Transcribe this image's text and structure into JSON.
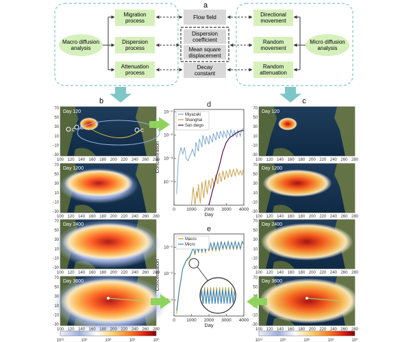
{
  "panel_labels": {
    "a": "a",
    "b": "b",
    "c": "c",
    "d": "d",
    "e": "e"
  },
  "flow": {
    "left_hub": [
      "Macro diffusion",
      "analysis"
    ],
    "right_hub": [
      "Micro diffusion",
      "analysis"
    ],
    "left_boxes": [
      [
        "Migration",
        "process"
      ],
      [
        "Dispersion",
        "process"
      ],
      [
        "Attenuation",
        "process"
      ]
    ],
    "center_boxes": {
      "flow_field": [
        "Flow field"
      ],
      "dispersion": [
        "Dispersion",
        "coefficient"
      ],
      "msd": [
        "Mean square",
        "displacement"
      ],
      "decay": [
        "Decay",
        "constant"
      ]
    },
    "right_boxes": [
      [
        "Directional",
        "movement"
      ],
      [
        "Random",
        "movement"
      ],
      [
        "Random",
        "attenuation"
      ]
    ],
    "colors": {
      "green_box": "#d6f0bb",
      "gray_box": "#d9d9d9",
      "dash": "#7fc4c4",
      "arrow_teal": "#7fc6c6",
      "arrow_green": "#8ed35c"
    }
  },
  "maps": {
    "day_labels": [
      "Day 120",
      "Day 1200",
      "Day 2400",
      "Day 3600"
    ],
    "y_ticks": [
      "70",
      "50",
      "30",
      "10",
      "-10",
      "-30"
    ],
    "x_ticks": [
      "100",
      "120",
      "140",
      "160",
      "180",
      "200",
      "220",
      "240",
      "260",
      "280"
    ],
    "site_markers": [
      "C",
      "C",
      "C"
    ]
  },
  "colorbars": {
    "ticks": [
      "10¹²",
      "10⁹",
      "10⁶",
      "10³",
      "10⁰"
    ],
    "stops": [
      "#e8ecf8",
      "#9fb0e0",
      "#ffffff",
      "#ffd070",
      "#ff8020",
      "#e02010",
      "#800000"
    ]
  },
  "chart_data": [
    {
      "type": "line",
      "title": "d",
      "xlabel": "Day",
      "ylabel": "Concentration",
      "log_y": true,
      "xlim": [
        0,
        4000
      ],
      "y_ticks": [
        "10⁻¹",
        "10⁻²",
        "10⁻³",
        "10⁻⁴"
      ],
      "x_ticks": [
        "0",
        "1000",
        "2000",
        "3000",
        "4000"
      ],
      "legend_position": "top-left",
      "series": [
        {
          "name": "Miyazaki",
          "color": "#7aa7cf",
          "x": [
            150,
            250,
            400,
            500,
            600,
            700,
            800,
            1000,
            1050,
            1200,
            1250,
            1400,
            1450,
            1600,
            1650,
            1800,
            1850,
            2000,
            2050,
            2200,
            2250,
            2400,
            2450,
            2600,
            2650,
            2800,
            2850,
            3000,
            3050,
            3200,
            3250,
            3400,
            3450,
            3600,
            3650,
            3800,
            3850,
            4000
          ],
          "y": [
            3e-05,
            0.001,
            0.003,
            0.0015,
            0.003,
            0.001,
            0.0008,
            0.0018,
            0.0025,
            0.0012,
            0.005,
            0.002,
            0.007,
            0.003,
            0.01,
            0.004,
            0.009,
            0.004,
            0.01,
            0.005,
            0.012,
            0.006,
            0.014,
            0.007,
            0.015,
            0.008,
            0.015,
            0.008,
            0.016,
            0.009,
            0.017,
            0.009,
            0.016,
            0.008,
            0.017,
            0.009,
            0.016,
            0.02
          ]
        },
        {
          "name": "Shanghai",
          "color": "#c8a24a",
          "x": [
            1000,
            1100,
            1200,
            1300,
            1350,
            1400,
            1500,
            1600,
            1700,
            1800,
            1900,
            2000,
            2100,
            2200,
            2300,
            2400,
            2500,
            2600,
            2700,
            2800,
            2900,
            3000,
            3100,
            3200,
            3300,
            3400,
            3500,
            3600,
            3700,
            3800,
            3900,
            4000
          ],
          "y": [
            1e-05,
            6e-05,
            1e-05,
            4e-05,
            2e-05,
            8e-05,
            1.2e-05,
            0.0001,
            2e-05,
            0.00012,
            3e-05,
            0.00012,
            5e-05,
            0.00015,
            6e-05,
            0.0002,
            8e-05,
            0.00025,
            0.0001,
            0.0003,
            0.00012,
            0.0003,
            0.00015,
            0.00035,
            0.00016,
            0.00035,
            0.00018,
            0.00035,
            0.0002,
            0.0003,
            0.0002,
            0.0004
          ]
        },
        {
          "name": "San diego",
          "color": "#5a1a58",
          "x": [
            2000,
            2200,
            2400,
            2600,
            2800,
            3000,
            3200,
            3400,
            3600,
            3800,
            4000
          ],
          "y": [
            1e-05,
            4e-05,
            0.00015,
            0.0005,
            0.002,
            0.005,
            0.008,
            0.01,
            0.013,
            0.015,
            0.016
          ]
        }
      ]
    },
    {
      "type": "line",
      "title": "e",
      "xlabel": "Day",
      "ylabel": "Concentration",
      "log_y": true,
      "xlim": [
        0,
        4000
      ],
      "y_ticks": [
        "10⁻¹",
        "10⁻²",
        "10⁻³"
      ],
      "x_ticks": [
        "0",
        "1000",
        "2000",
        "3000",
        "4000"
      ],
      "legend_position": "top-left",
      "series": [
        {
          "name": "Macro",
          "color": "#b9a23a",
          "x": [
            150,
            300,
            500,
            700,
            900,
            1000,
            1100,
            1200,
            1300,
            1400,
            1500,
            1600,
            1700,
            1800,
            1900,
            2000,
            2100,
            2200,
            2300,
            2400,
            2500,
            2600,
            2700,
            2800,
            2900,
            3000,
            3100,
            3200,
            3300,
            3400,
            3500,
            3600,
            3700,
            3800,
            3900,
            4000
          ],
          "y": [
            0.0003,
            0.002,
            0.015,
            0.03,
            0.04,
            0.06,
            0.1,
            0.05,
            0.12,
            0.06,
            0.13,
            0.06,
            0.14,
            0.06,
            0.15,
            0.07,
            0.15,
            0.07,
            0.16,
            0.07,
            0.16,
            0.07,
            0.17,
            0.08,
            0.16,
            0.08,
            0.17,
            0.08,
            0.16,
            0.08,
            0.17,
            0.08,
            0.16,
            0.08,
            0.17,
            0.12
          ]
        },
        {
          "name": "Micro",
          "color": "#3b87c4",
          "x": [
            150,
            300,
            500,
            700,
            900,
            1000,
            1100,
            1200,
            1300,
            1400,
            1500,
            1600,
            1700,
            1800,
            1900,
            2000,
            2100,
            2200,
            2300,
            2400,
            2500,
            2600,
            2700,
            2800,
            2900,
            3000,
            3100,
            3200,
            3300,
            3400,
            3500,
            3600,
            3700,
            3800,
            3900,
            4000
          ],
          "y": [
            0.0004,
            0.0025,
            0.016,
            0.032,
            0.045,
            0.065,
            0.09,
            0.06,
            0.11,
            0.07,
            0.12,
            0.07,
            0.13,
            0.07,
            0.14,
            0.08,
            0.14,
            0.08,
            0.15,
            0.08,
            0.15,
            0.08,
            0.16,
            0.09,
            0.15,
            0.09,
            0.16,
            0.09,
            0.15,
            0.09,
            0.16,
            0.09,
            0.15,
            0.09,
            0.16,
            0.13
          ]
        }
      ]
    }
  ]
}
